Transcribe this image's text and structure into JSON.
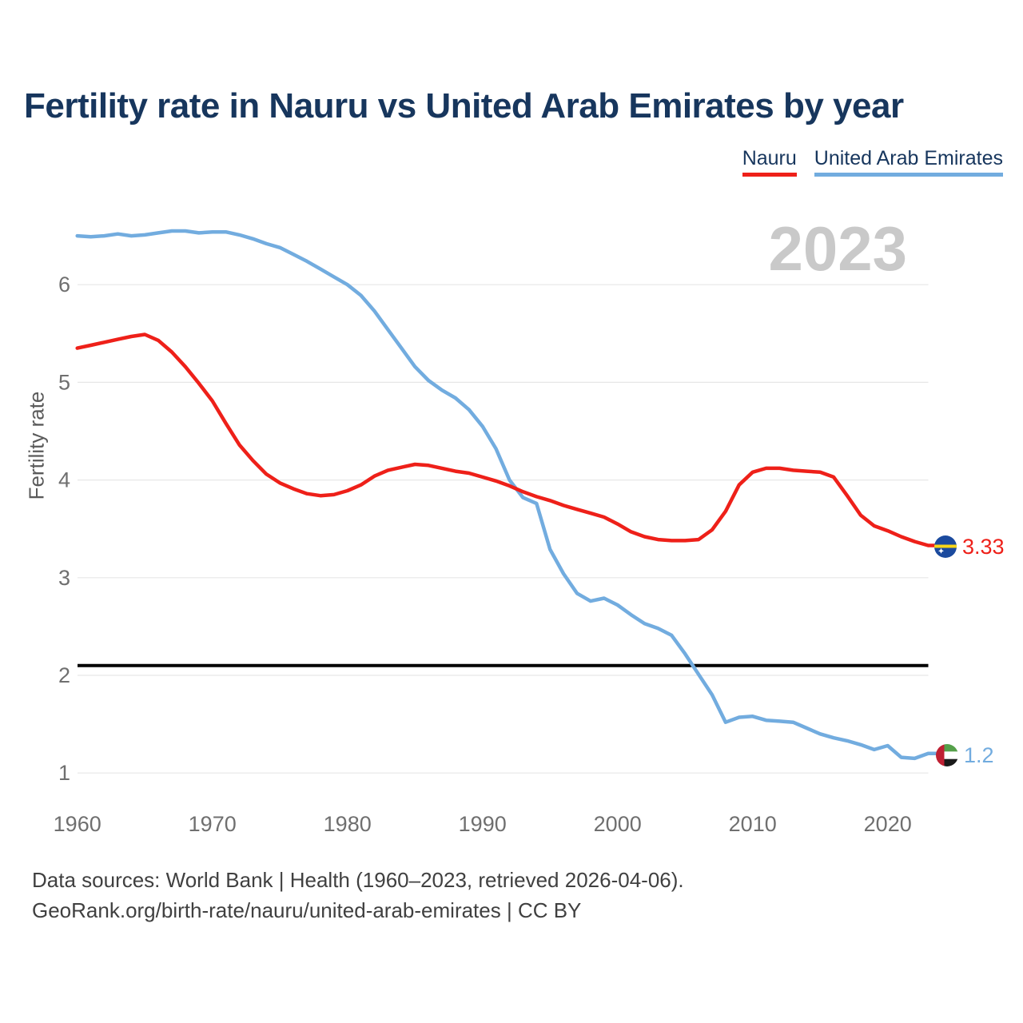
{
  "title": "Fertility rate in Nauru vs United Arab Emirates by year",
  "watermark": "2023",
  "legend": [
    {
      "label": "Nauru",
      "color": "#ee2019"
    },
    {
      "label": "United Arab Emirates",
      "color": "#72acdf"
    }
  ],
  "y_axis": {
    "title": "Fertility rate",
    "ticks": [
      6,
      5,
      4,
      3,
      2,
      1
    ]
  },
  "x_axis": {
    "ticks": [
      1960,
      1970,
      1980,
      1990,
      2000,
      2010,
      2020
    ]
  },
  "reference_line": {
    "value": 2.1,
    "color": "#000000"
  },
  "end_labels": [
    {
      "series": "Nauru",
      "value": "3.33",
      "flag": "nauru-flag",
      "color": "#ee2019"
    },
    {
      "series": "United Arab Emirates",
      "value": "1.2",
      "flag": "uae-flag",
      "color": "#72acdf"
    }
  ],
  "footer": {
    "line1": "Data sources: World Bank | Health (1960–2023, retrieved 2026-04-06).",
    "line2": "GeoRank.org/birth-rate/nauru/united-arab-emirates | CC BY"
  },
  "chart_data": {
    "type": "line",
    "title": "Fertility rate in Nauru vs United Arab Emirates by year",
    "xlabel": "",
    "ylabel": "Fertility rate",
    "xlim": [
      1960,
      2023
    ],
    "ylim": [
      0.8,
      6.8
    ],
    "grid": "horizontal",
    "legend_position": "top-right",
    "annotation": "black horizontal reference line at 2.1 (replacement level)",
    "years": [
      1960,
      1961,
      1962,
      1963,
      1964,
      1965,
      1966,
      1967,
      1968,
      1969,
      1970,
      1971,
      1972,
      1973,
      1974,
      1975,
      1976,
      1977,
      1978,
      1979,
      1980,
      1981,
      1982,
      1983,
      1984,
      1985,
      1986,
      1987,
      1988,
      1989,
      1990,
      1991,
      1992,
      1993,
      1994,
      1995,
      1996,
      1997,
      1998,
      1999,
      2000,
      2001,
      2002,
      2003,
      2004,
      2005,
      2006,
      2007,
      2008,
      2009,
      2010,
      2011,
      2012,
      2013,
      2014,
      2015,
      2016,
      2017,
      2018,
      2019,
      2020,
      2021,
      2022,
      2023
    ],
    "series": [
      {
        "name": "Nauru",
        "color": "#ee2019",
        "values": [
          5.35,
          5.38,
          5.41,
          5.44,
          5.47,
          5.49,
          5.43,
          5.31,
          5.16,
          4.99,
          4.81,
          4.58,
          4.36,
          4.2,
          4.06,
          3.97,
          3.91,
          3.86,
          3.84,
          3.85,
          3.89,
          3.95,
          4.04,
          4.1,
          4.13,
          4.16,
          4.15,
          4.12,
          4.09,
          4.07,
          4.03,
          3.99,
          3.94,
          3.88,
          3.83,
          3.79,
          3.74,
          3.7,
          3.66,
          3.62,
          3.55,
          3.47,
          3.42,
          3.39,
          3.38,
          3.38,
          3.39,
          3.49,
          3.68,
          3.95,
          4.08,
          4.12,
          4.12,
          4.1,
          4.09,
          4.08,
          4.03,
          3.84,
          3.64,
          3.53,
          3.48,
          3.42,
          3.37,
          3.33
        ]
      },
      {
        "name": "United Arab Emirates",
        "color": "#72acdf",
        "values": [
          6.5,
          6.49,
          6.5,
          6.52,
          6.5,
          6.51,
          6.53,
          6.55,
          6.55,
          6.53,
          6.54,
          6.54,
          6.51,
          6.47,
          6.42,
          6.38,
          6.31,
          6.24,
          6.16,
          6.08,
          6.0,
          5.89,
          5.73,
          5.54,
          5.35,
          5.16,
          5.02,
          4.92,
          4.84,
          4.72,
          4.55,
          4.32,
          4.0,
          3.82,
          3.76,
          3.29,
          3.04,
          2.84,
          2.76,
          2.79,
          2.72,
          2.62,
          2.53,
          2.48,
          2.41,
          2.22,
          2.01,
          1.8,
          1.52,
          1.57,
          1.58,
          1.54,
          1.53,
          1.52,
          1.46,
          1.4,
          1.36,
          1.33,
          1.29,
          1.24,
          1.28,
          1.16,
          1.15,
          1.2
        ]
      }
    ]
  }
}
